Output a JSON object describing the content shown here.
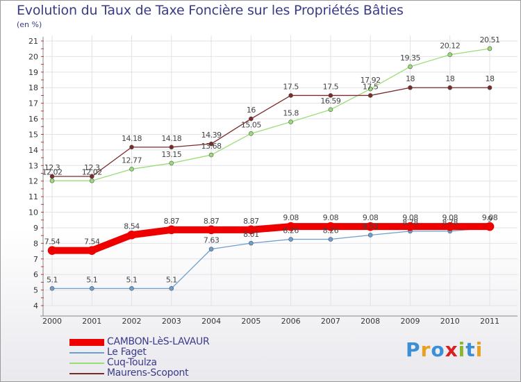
{
  "chart_data": {
    "type": "line",
    "title": "Evolution du Taux de Taxe Foncière sur les Propriétés Bâties",
    "ylabel": "(en %)",
    "xlabel": "",
    "ylim": [
      4,
      21
    ],
    "yticks": [
      "4",
      "5",
      "6",
      "7",
      "8",
      "9",
      "10",
      "11",
      "12",
      "13",
      "14",
      "15",
      "16",
      "17",
      "18",
      "19",
      "20",
      "21"
    ],
    "categories": [
      "2000",
      "2001",
      "2002",
      "2003",
      "2004",
      "2005",
      "2006",
      "2007",
      "2008",
      "2009",
      "2010",
      "2011"
    ],
    "series": [
      {
        "name": "CAMBON-LèS-LAVAUR",
        "color": "#ee0000",
        "values": [
          7.54,
          7.54,
          8.54,
          8.87,
          8.87,
          8.87,
          9.08,
          9.08,
          9.08,
          9.08,
          9.08,
          9.08
        ],
        "labels": [
          "7.54",
          "7.54",
          "8.54",
          "8.87",
          "8.87",
          "8.87",
          "9.08",
          "9.08",
          "9.08",
          "9.08",
          "9.08",
          "9.08"
        ]
      },
      {
        "name": "Le Faget",
        "color": "#6a9fd0",
        "values": [
          5.1,
          5.1,
          5.1,
          5.1,
          7.63,
          8.01,
          8.26,
          8.26,
          8.53,
          8.78,
          8.78,
          9.0
        ],
        "labels": [
          "5.1",
          "5.1",
          "5.1",
          "5.1",
          "7.63",
          "8.01",
          "8.26",
          "8.26",
          "8.53",
          "8.78",
          "8.78",
          "9"
        ]
      },
      {
        "name": "Cuq-Toulza",
        "color": "#99dd77",
        "values": [
          12.02,
          12.02,
          12.77,
          13.15,
          13.68,
          15.05,
          15.8,
          16.59,
          17.92,
          19.35,
          20.12,
          20.51
        ],
        "labels": [
          "12.02",
          "12.02",
          "12.77",
          "13.15",
          "13.68",
          "15.05",
          "15.8",
          "16.59",
          "17.92",
          "19.35",
          "20.12",
          "20.51"
        ]
      },
      {
        "name": "Maurens-Scopont",
        "color": "#7a2a2a",
        "values": [
          12.3,
          12.3,
          14.18,
          14.18,
          14.39,
          16,
          17.5,
          17.5,
          17.5,
          18,
          18,
          18
        ],
        "labels": [
          "12.3",
          "12.3",
          "14.18",
          "14.18",
          "14.39",
          "16",
          "17.5",
          "17.5",
          "17.5",
          "18",
          "18",
          "18"
        ]
      }
    ]
  },
  "logo": {
    "text": "Proxiti",
    "colors": [
      "#3a8fd6",
      "#e8a020",
      "#3a8fd6",
      "#d82020",
      "#88b830",
      "#3a8fd6",
      "#e8a020"
    ]
  }
}
